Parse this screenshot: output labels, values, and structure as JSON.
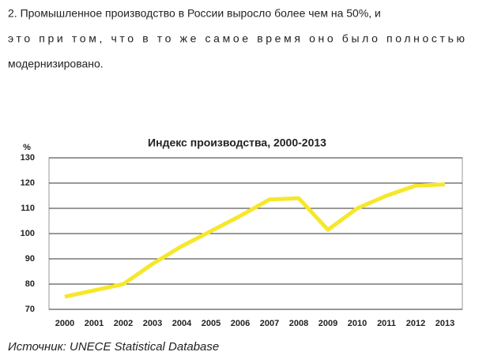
{
  "paragraph": {
    "lines": [
      "2. Промышленное производство в России выросло более чем на 50%, и",
      "это при том, что в то же самое время оно было полностью",
      "модернизировано."
    ]
  },
  "chart_data": {
    "type": "line",
    "title": "Индекс производства, 2000-2013",
    "y_label": "%",
    "categories": [
      "2000",
      "2001",
      "2002",
      "2003",
      "2004",
      "2005",
      "2006",
      "2007",
      "2008",
      "2009",
      "2010",
      "2011",
      "2012",
      "2013"
    ],
    "values": [
      75,
      77.5,
      80,
      88,
      95,
      101,
      107,
      113.5,
      114,
      101.5,
      110,
      115,
      119,
      119.5
    ],
    "color": "#f6e72a",
    "ylim": [
      70,
      130
    ],
    "yticks": [
      70,
      80,
      90,
      100,
      110,
      120,
      130
    ],
    "grid": true
  },
  "source": "Источник: UNECE Statistical Database"
}
